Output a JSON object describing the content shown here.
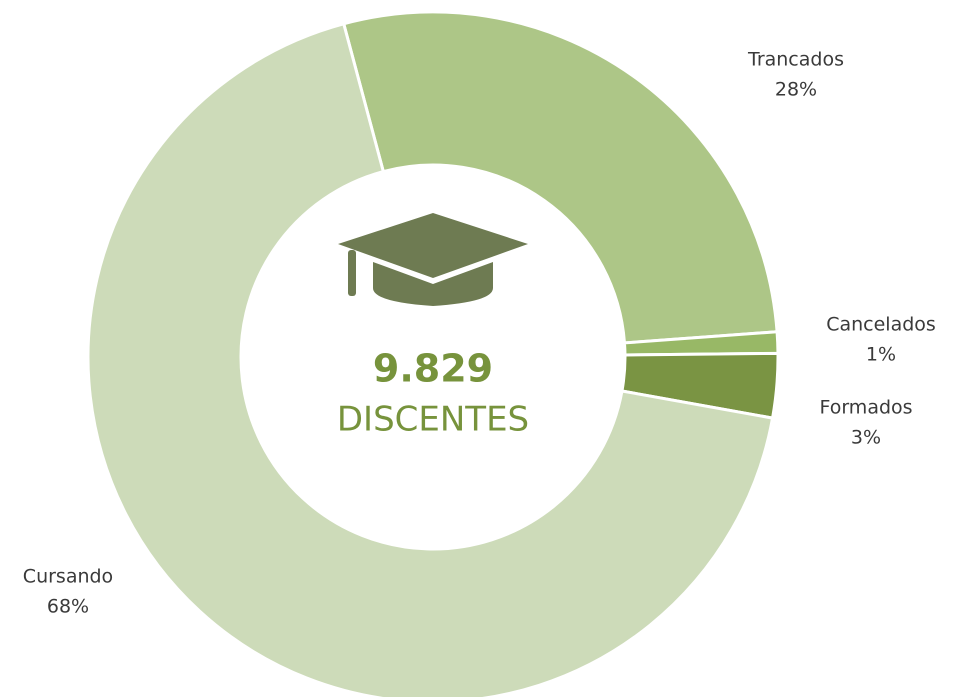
{
  "chart_data": {
    "type": "donut",
    "categories": [
      "Trancados",
      "Cancelados",
      "Formados",
      "Cursando"
    ],
    "values": [
      28,
      1,
      3,
      68
    ],
    "value_labels": [
      "28%",
      "1%",
      "3%",
      "68%"
    ],
    "colors": [
      "#adc687",
      "#98b866",
      "#7a9443",
      "#cddbb9"
    ],
    "center_value": "9.829",
    "center_label": "DISCENTES"
  }
}
